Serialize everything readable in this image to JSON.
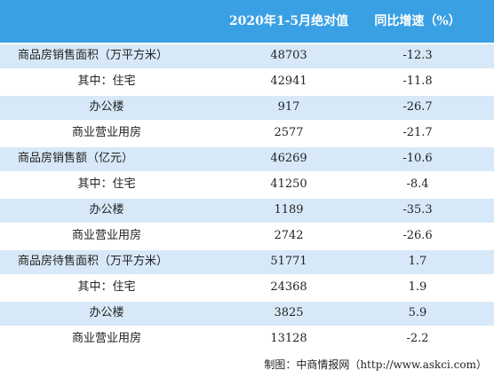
{
  "table": {
    "header": [
      "2020年1-5月绝对值",
      "同比增速（%）"
    ],
    "rows": [
      [
        "商品房销售面积（万平方米）",
        48703,
        -12.3
      ],
      [
        "其中：住宅",
        42941,
        -11.8
      ],
      [
        "办公楼",
        917,
        -26.7
      ],
      [
        "商业营业用房",
        2577,
        -21.7
      ],
      [
        "商品房销售额（亿元）",
        46269,
        -10.6
      ],
      [
        "其中：住宅",
        41250,
        -8.4
      ],
      [
        "办公楼",
        1189,
        -35.3
      ],
      [
        "商业营业用房",
        2742,
        -26.6
      ],
      [
        "商品房待售面积（万平方米）",
        51771,
        1.7
      ],
      [
        "其中：住宅",
        24368,
        1.9
      ],
      [
        "办公楼",
        3825,
        5.9
      ],
      [
        "商业营业用房",
        13128,
        -2.2
      ]
    ]
  },
  "footer": "制图：中商情报网（http://www.askci.com）"
}
